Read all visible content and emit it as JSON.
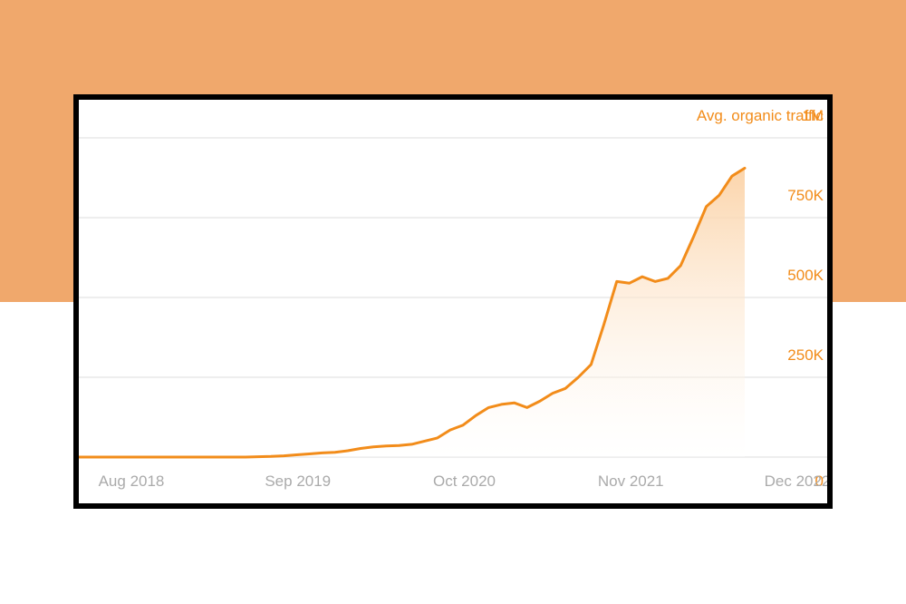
{
  "chart_data": {
    "type": "area",
    "title": "Avg. organic traffic",
    "x_tick_labels": [
      "Aug 2018",
      "Sep 2019",
      "Oct 2020",
      "Nov 2021",
      "Dec 2022"
    ],
    "y_tick_labels": [
      "0",
      "250K",
      "500K",
      "750K",
      "1M"
    ],
    "ylim": [
      0,
      1000000
    ],
    "y_ticks": [
      0,
      250000,
      500000,
      750000,
      1000000
    ],
    "grid": true,
    "colors": {
      "line": "#f28c1a",
      "fill": "#fbd6ad",
      "grid": "#e8e8e8",
      "x_ticks": "#aaaaaa",
      "y_ticks": "#f28c1a"
    },
    "series": [
      {
        "x": [
          "2018-08",
          "2018-09",
          "2018-10",
          "2018-11",
          "2018-12",
          "2019-01",
          "2019-02",
          "2019-03",
          "2019-04",
          "2019-05",
          "2019-06",
          "2019-07",
          "2019-08",
          "2019-09",
          "2019-10",
          "2019-11",
          "2019-12",
          "2020-01",
          "2020-02",
          "2020-03",
          "2020-04",
          "2020-05",
          "2020-06",
          "2020-07",
          "2020-08",
          "2020-09",
          "2020-10",
          "2020-11",
          "2020-12",
          "2021-01",
          "2021-02",
          "2021-03",
          "2021-04",
          "2021-05",
          "2021-06",
          "2021-07",
          "2021-08",
          "2021-09",
          "2021-10",
          "2021-11",
          "2021-12",
          "2022-01",
          "2022-02",
          "2022-03",
          "2022-04",
          "2022-05",
          "2022-06",
          "2022-07",
          "2022-08",
          "2022-09",
          "2022-10",
          "2022-11",
          "2022-12"
        ],
        "values": [
          0,
          0,
          0,
          0,
          0,
          0,
          0,
          0,
          0,
          0,
          0,
          0,
          0,
          0,
          1000,
          2000,
          4000,
          7000,
          10000,
          13000,
          15000,
          20000,
          27000,
          32000,
          35000,
          36000,
          40000,
          50000,
          60000,
          85000,
          100000,
          130000,
          155000,
          165000,
          170000,
          155000,
          175000,
          200000,
          215000,
          250000,
          290000,
          415000,
          550000,
          545000,
          565000,
          550000,
          560000,
          600000,
          690000,
          785000,
          820000,
          880000,
          905000
        ]
      }
    ]
  }
}
